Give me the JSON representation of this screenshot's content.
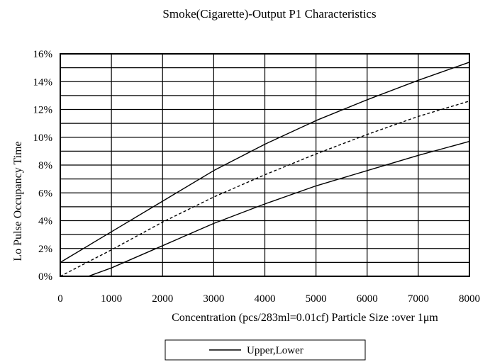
{
  "chart_data": {
    "type": "line",
    "title": "Smoke(Cigarette)-Output P1 Characteristics",
    "xlabel": "Concentration (pcs/283ml=0.01cf)  Particle Size :over 1μm",
    "ylabel": "Lo Pulse Occupancy  Time",
    "xlim": [
      0,
      8000
    ],
    "ylim": [
      0,
      16
    ],
    "x_ticks": [
      0,
      1000,
      2000,
      3000,
      4000,
      5000,
      6000,
      7000,
      8000
    ],
    "x_tick_labels": [
      "0",
      "1000",
      "2000",
      "3000",
      "4000",
      "5000",
      "6000",
      "7000",
      "8000"
    ],
    "y_ticks": [
      0,
      2,
      4,
      6,
      8,
      10,
      12,
      14,
      16
    ],
    "y_tick_labels": [
      "0%",
      "2%",
      "4%",
      "6%",
      "8%",
      "10%",
      "12%",
      "14%",
      "16%"
    ],
    "y_gridlines": [
      0,
      1,
      2,
      3,
      4,
      5,
      6,
      7,
      8,
      9,
      10,
      11,
      12,
      13,
      14,
      15,
      16
    ],
    "grid": true,
    "legend": {
      "placement": "bottom-center",
      "entries": [
        {
          "label": "Upper,Lower",
          "style": "solid"
        }
      ]
    },
    "series": [
      {
        "style": "solid",
        "x": [
          0,
          1000,
          2000,
          3000,
          4000,
          5000,
          6000,
          7000,
          8000
        ],
        "y": [
          1.0,
          3.2,
          5.4,
          7.6,
          9.5,
          11.2,
          12.7,
          14.1,
          15.4
        ]
      },
      {
        "style": "dashed",
        "x": [
          0,
          1000,
          2000,
          3000,
          4000,
          5000,
          6000,
          7000,
          8000
        ],
        "y": [
          0.0,
          1.9,
          3.9,
          5.7,
          7.3,
          8.8,
          10.2,
          11.5,
          12.6
        ]
      },
      {
        "style": "solid",
        "x": [
          550,
          1000,
          2000,
          3000,
          4000,
          5000,
          6000,
          7000,
          8000
        ],
        "y": [
          0.0,
          0.6,
          2.2,
          3.8,
          5.2,
          6.5,
          7.6,
          8.7,
          9.7
        ]
      }
    ]
  }
}
